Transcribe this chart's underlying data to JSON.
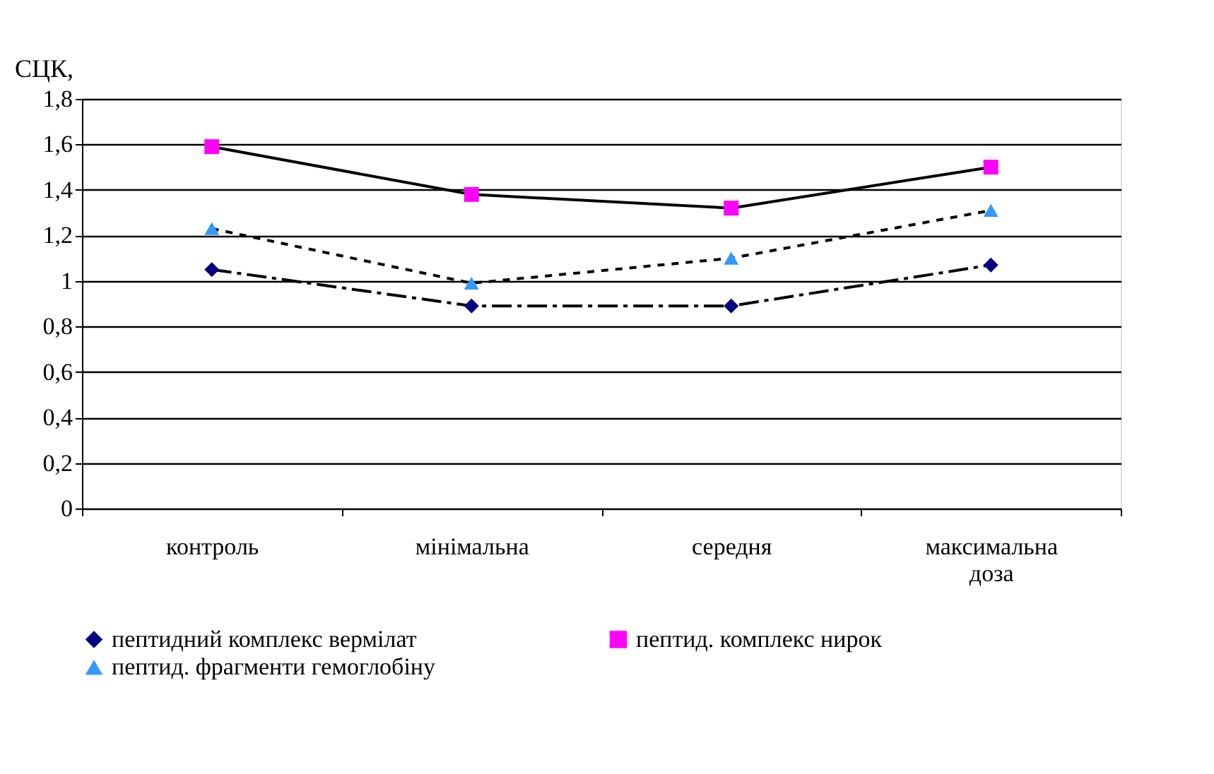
{
  "chart_data": {
    "type": "line",
    "ylabel": "СЦК,",
    "categories": [
      "контроль",
      "мінімальна",
      "середня",
      "максимальна доза"
    ],
    "ylim": [
      0,
      1.8
    ],
    "yticks": [
      0,
      {
        "value": 0.2,
        "label": "0,2"
      },
      {
        "value": 0.4,
        "label": "0,4"
      },
      {
        "value": 0.6,
        "label": "0,6"
      },
      {
        "value": 0.8,
        "label": "0,8"
      },
      1,
      {
        "value": 1.2,
        "label": "1,2"
      },
      {
        "value": 1.4,
        "label": "1,4"
      },
      {
        "value": 1.6,
        "label": "1,6"
      },
      {
        "value": 1.8,
        "label": "1,8"
      }
    ],
    "grid": "y",
    "legend": "bottom",
    "series": [
      {
        "name": "пептидний комплекс вермілат",
        "color": "#000080",
        "marker": "diamond",
        "line_style": "dashed",
        "values": [
          1.05,
          0.89,
          0.89,
          1.07
        ]
      },
      {
        "name": "пептид. комплекс нирок",
        "color": "#ff00ff",
        "marker": "square",
        "line_style": "solid",
        "values": [
          1.59,
          1.38,
          1.32,
          1.5
        ]
      },
      {
        "name": "пептид. фрагменти гемоглобіну",
        "color": "#3399ff",
        "marker": "triangle",
        "line_style": "dotted",
        "values": [
          1.23,
          0.99,
          1.1,
          1.31
        ]
      }
    ]
  }
}
